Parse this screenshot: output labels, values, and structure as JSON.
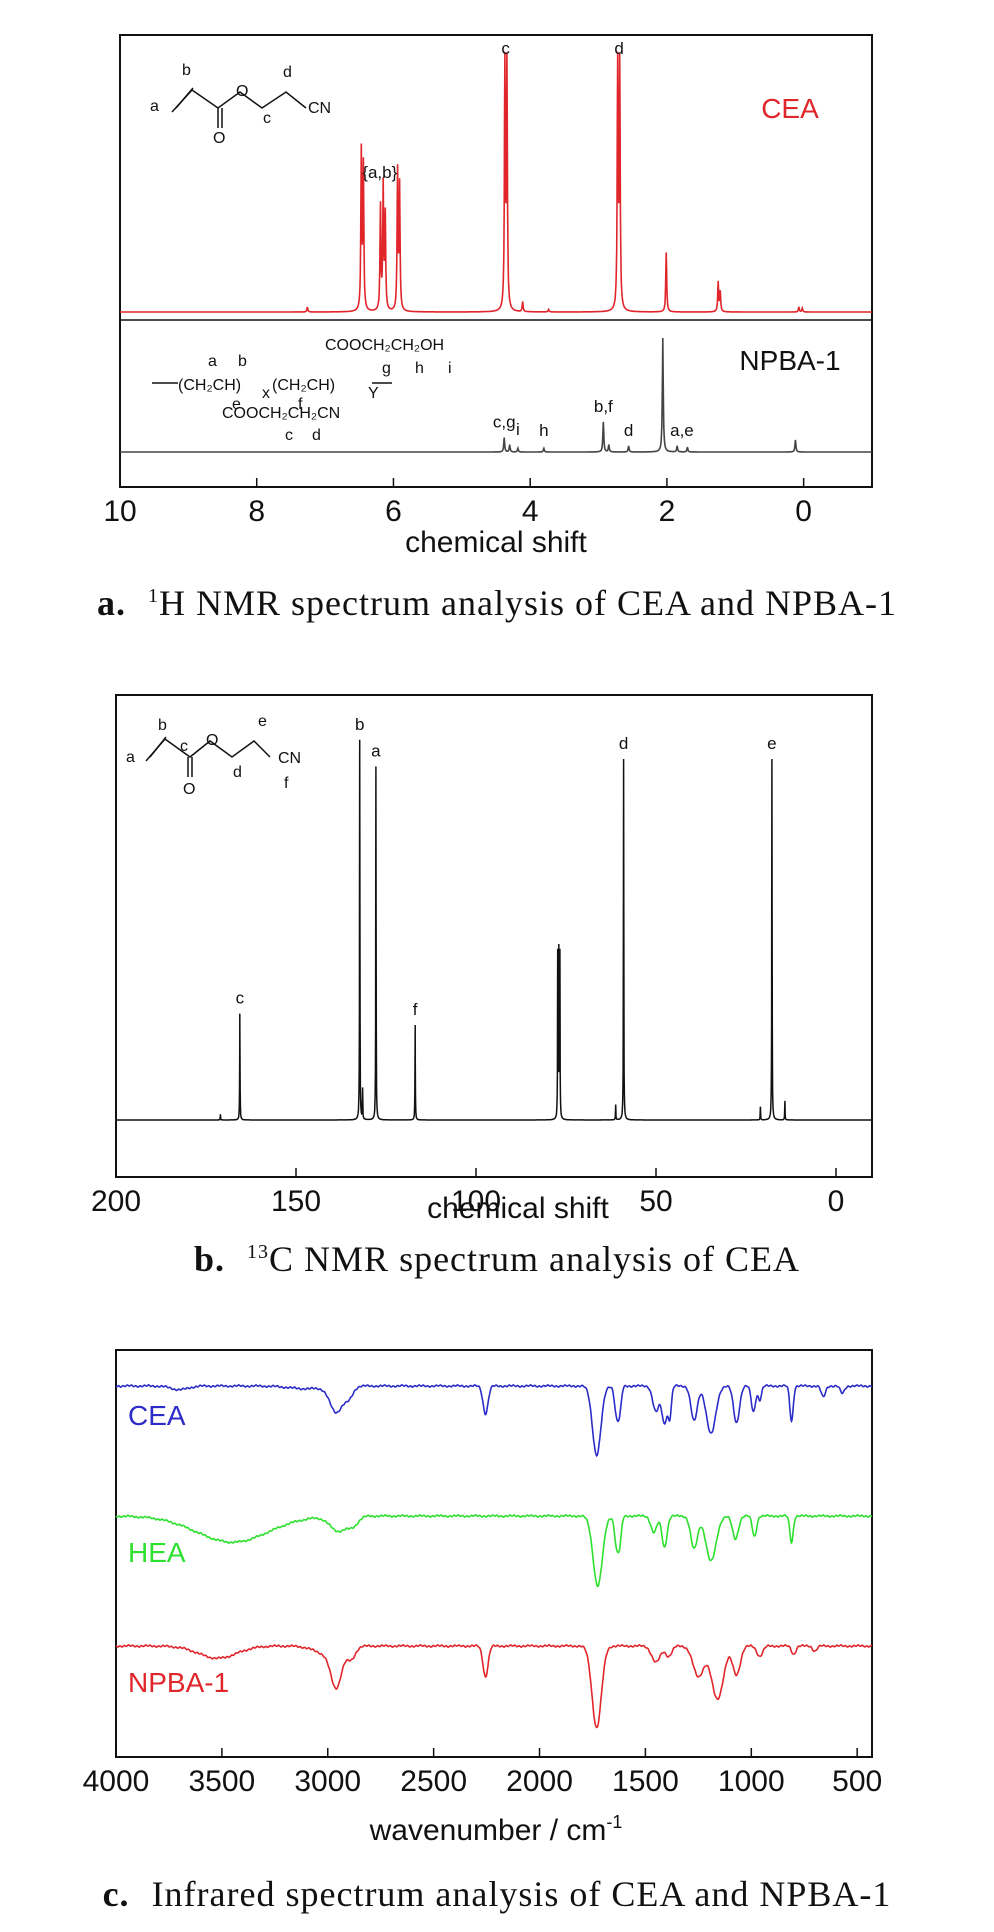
{
  "captions": {
    "a": {
      "letter": "a.",
      "sup": "1",
      "text": "H NMR spectrum analysis of CEA and NPBA-1"
    },
    "b": {
      "letter": "b.",
      "sup": "13",
      "text": "C NMR spectrum analysis of CEA"
    },
    "c": {
      "letter": "c.",
      "text": "Infrared spectrum analysis of CEA and NPBA-1"
    }
  },
  "chart_data": [
    {
      "type": "line",
      "id": "h-nmr",
      "xlabel": "chemical shift",
      "xlim": [
        10,
        -1
      ],
      "xticks": [
        10,
        8,
        6,
        4,
        2,
        0
      ],
      "series": [
        {
          "name": "CEA",
          "color": "#e0262b",
          "peaks": [
            [
              7.26,
              0.02
            ],
            [
              6.47,
              0.64
            ],
            [
              6.44,
              0.58
            ],
            [
              6.19,
              0.42
            ],
            [
              6.15,
              0.5
            ],
            [
              6.12,
              0.38
            ],
            [
              5.94,
              0.56
            ],
            [
              5.91,
              0.5
            ],
            [
              4.37,
              1.0
            ],
            [
              4.34,
              0.98
            ],
            [
              4.11,
              0.04
            ],
            [
              3.73,
              0.01
            ],
            [
              2.72,
              1.0
            ],
            [
              2.69,
              0.98
            ],
            [
              2.01,
              0.24
            ],
            [
              1.25,
              0.12
            ],
            [
              1.22,
              0.08
            ],
            [
              0.07,
              0.02
            ],
            [
              0.02,
              0.015
            ]
          ]
        },
        {
          "name": "NPBA-1",
          "color": "#444444",
          "peaks": [
            [
              4.38,
              0.12
            ],
            [
              4.3,
              0.06
            ],
            [
              4.18,
              0.03
            ],
            [
              3.8,
              0.03
            ],
            [
              2.93,
              0.25
            ],
            [
              2.85,
              0.06
            ],
            [
              2.56,
              0.05
            ],
            [
              2.06,
              0.95
            ],
            [
              1.85,
              0.05
            ],
            [
              1.7,
              0.04
            ],
            [
              0.12,
              0.1
            ]
          ]
        }
      ],
      "peak_labels": [
        {
          "series": "CEA",
          "x": 6.2,
          "text": "{a,b}"
        },
        {
          "series": "CEA",
          "x": 4.36,
          "text": "c"
        },
        {
          "series": "CEA",
          "x": 2.7,
          "text": "d"
        },
        {
          "series": "NPBA-1",
          "x": 4.38,
          "text": "c,g"
        },
        {
          "series": "NPBA-1",
          "x": 4.18,
          "text": "i"
        },
        {
          "series": "NPBA-1",
          "x": 3.8,
          "text": "h"
        },
        {
          "series": "NPBA-1",
          "x": 2.93,
          "text": "b,f"
        },
        {
          "series": "NPBA-1",
          "x": 2.56,
          "text": "d"
        },
        {
          "series": "NPBA-1",
          "x": 1.78,
          "text": "a,e"
        }
      ]
    },
    {
      "type": "line",
      "id": "c-nmr",
      "xlabel": "chemical shift",
      "xlim": [
        200,
        -10
      ],
      "xticks": [
        200,
        150,
        100,
        50,
        0
      ],
      "series": [
        {
          "name": "CEA",
          "color": "#111111",
          "peaks": [
            [
              171,
              0.015
            ],
            [
              165.6,
              0.28
            ],
            [
              132.3,
              1.0
            ],
            [
              131.5,
              0.08
            ],
            [
              127.8,
              0.93
            ],
            [
              116.9,
              0.25
            ],
            [
              77.3,
              0.43
            ],
            [
              77.0,
              0.43
            ],
            [
              76.7,
              0.43
            ],
            [
              61.2,
              0.04
            ],
            [
              59.0,
              0.95
            ],
            [
              21,
              0.035
            ],
            [
              17.8,
              0.95
            ],
            [
              14.2,
              0.05
            ]
          ]
        }
      ],
      "peak_labels": [
        {
          "x": 165.6,
          "text": "c"
        },
        {
          "x": 132.3,
          "text": "b"
        },
        {
          "x": 127.8,
          "text": "a"
        },
        {
          "x": 116.9,
          "text": "f"
        },
        {
          "x": 59.0,
          "text": "d"
        },
        {
          "x": 17.8,
          "text": "e"
        }
      ]
    },
    {
      "type": "line",
      "id": "ir",
      "xlabel": "wavenumber / cm",
      "xlabel_sup": "-1",
      "xlim": [
        4000,
        430
      ],
      "xticks": [
        4000,
        3500,
        3000,
        2500,
        2000,
        1500,
        1000,
        500
      ],
      "series": [
        {
          "name": "CEA",
          "color": "#2c2cc8",
          "bands": [
            [
              3700,
              0.04,
              40
            ],
            [
              3100,
              0.03,
              80
            ],
            [
              2960,
              0.28,
              30
            ],
            [
              2900,
              0.12,
              20
            ],
            [
              2255,
              0.3,
              12
            ],
            [
              1730,
              0.75,
              20
            ],
            [
              1635,
              0.33,
              10
            ],
            [
              1620,
              0.2,
              8
            ],
            [
              1450,
              0.28,
              15
            ],
            [
              1410,
              0.4,
              12
            ],
            [
              1385,
              0.32,
              8
            ],
            [
              1270,
              0.38,
              15
            ],
            [
              1190,
              0.52,
              22
            ],
            [
              1070,
              0.4,
              14
            ],
            [
              990,
              0.28,
              10
            ],
            [
              960,
              0.15,
              8
            ],
            [
              810,
              0.38,
              8
            ],
            [
              660,
              0.12,
              10
            ],
            [
              570,
              0.08,
              10
            ]
          ]
        },
        {
          "name": "HEA",
          "color": "#2ee02e",
          "bands": [
            [
              3450,
              0.32,
              170
            ],
            [
              2950,
              0.18,
              40
            ],
            [
              2880,
              0.1,
              25
            ],
            [
              1725,
              0.85,
              22
            ],
            [
              1635,
              0.38,
              10
            ],
            [
              1620,
              0.25,
              8
            ],
            [
              1460,
              0.2,
              14
            ],
            [
              1410,
              0.38,
              12
            ],
            [
              1270,
              0.4,
              16
            ],
            [
              1190,
              0.55,
              24
            ],
            [
              1075,
              0.28,
              14
            ],
            [
              985,
              0.25,
              10
            ],
            [
              810,
              0.32,
              8
            ]
          ]
        },
        {
          "name": "NPBA-1",
          "color": "#e0262b",
          "bands": [
            [
              3520,
              0.12,
              90
            ],
            [
              3000,
              0.08,
              60
            ],
            [
              2960,
              0.35,
              25
            ],
            [
              2890,
              0.12,
              20
            ],
            [
              2255,
              0.3,
              12
            ],
            [
              1730,
              0.8,
              22
            ],
            [
              1450,
              0.16,
              20
            ],
            [
              1390,
              0.1,
              15
            ],
            [
              1250,
              0.3,
              25
            ],
            [
              1160,
              0.52,
              28
            ],
            [
              1070,
              0.28,
              18
            ],
            [
              960,
              0.1,
              14
            ],
            [
              800,
              0.08,
              10
            ],
            [
              700,
              0.05,
              10
            ]
          ]
        }
      ]
    }
  ]
}
